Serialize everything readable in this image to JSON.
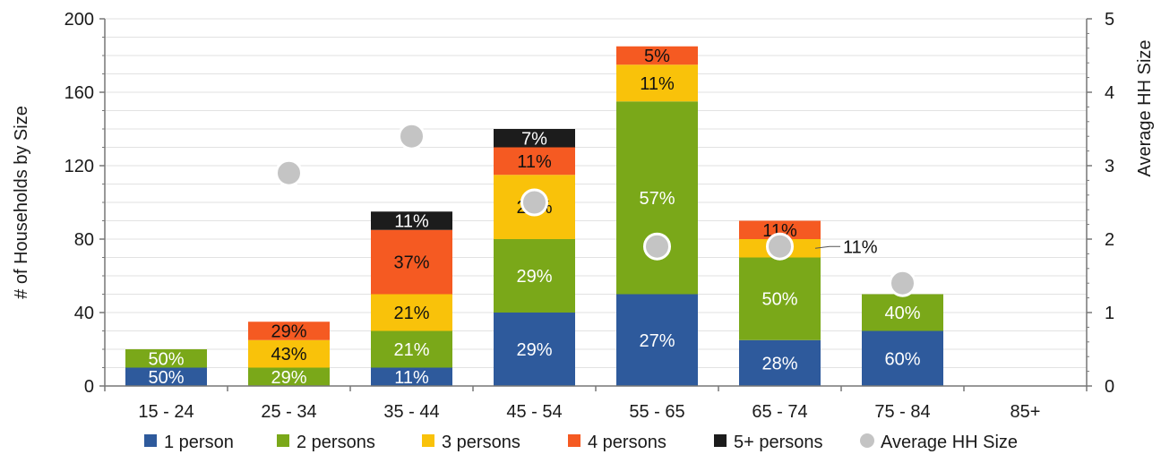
{
  "chart_data": {
    "type": "bar",
    "stacked": true,
    "categories": [
      "15 - 24",
      "25 - 34",
      "35 - 44",
      "45 - 54",
      "55 - 65",
      "65 - 74",
      "75 - 84",
      "85+"
    ],
    "ylabel": "# of Households by Size",
    "y2label": "Average HH Size",
    "ylim": [
      0,
      200
    ],
    "yticks": [
      "0",
      "40",
      "80",
      "120",
      "160",
      "200"
    ],
    "y2lim": [
      0,
      5
    ],
    "y2ticks": [
      "0",
      "1",
      "2",
      "3",
      "4",
      "5"
    ],
    "grid": true,
    "legend_position": "bottom",
    "series": [
      {
        "name": "1 person",
        "color": "#2e5a9c",
        "values": [
          10,
          0,
          10,
          40,
          50,
          25,
          30,
          0
        ],
        "labels": [
          "50%",
          "",
          "11%",
          "29%",
          "27%",
          "28%",
          "60%",
          ""
        ]
      },
      {
        "name": "2 persons",
        "color": "#7aa819",
        "values": [
          10,
          10,
          20,
          40,
          105,
          45,
          20,
          0
        ],
        "labels": [
          "50%",
          "29%",
          "21%",
          "29%",
          "57%",
          "50%",
          "40%",
          ""
        ]
      },
      {
        "name": "3 persons",
        "color": "#f9c20a",
        "values": [
          0,
          15,
          20,
          35,
          20,
          10,
          0,
          0
        ],
        "labels": [
          "",
          "43%",
          "21%",
          "25%",
          "11%",
          "11%",
          "",
          ""
        ]
      },
      {
        "name": "4 persons",
        "color": "#f55a22",
        "values": [
          0,
          10,
          35,
          15,
          10,
          10,
          0,
          0
        ],
        "labels": [
          "",
          "29%",
          "37%",
          "11%",
          "5%",
          "11%",
          "",
          ""
        ]
      },
      {
        "name": "5+ persons",
        "color": "#1c1c1c",
        "values": [
          0,
          0,
          10,
          10,
          0,
          0,
          0,
          0
        ],
        "labels": [
          "",
          "",
          "11%",
          "7%",
          "",
          "",
          "",
          ""
        ]
      }
    ],
    "average_hh_size": {
      "name": "Average HH Size",
      "color": "#c4c4c4",
      "values": [
        null,
        2.9,
        3.4,
        2.5,
        1.9,
        1.9,
        1.4,
        null
      ]
    }
  }
}
